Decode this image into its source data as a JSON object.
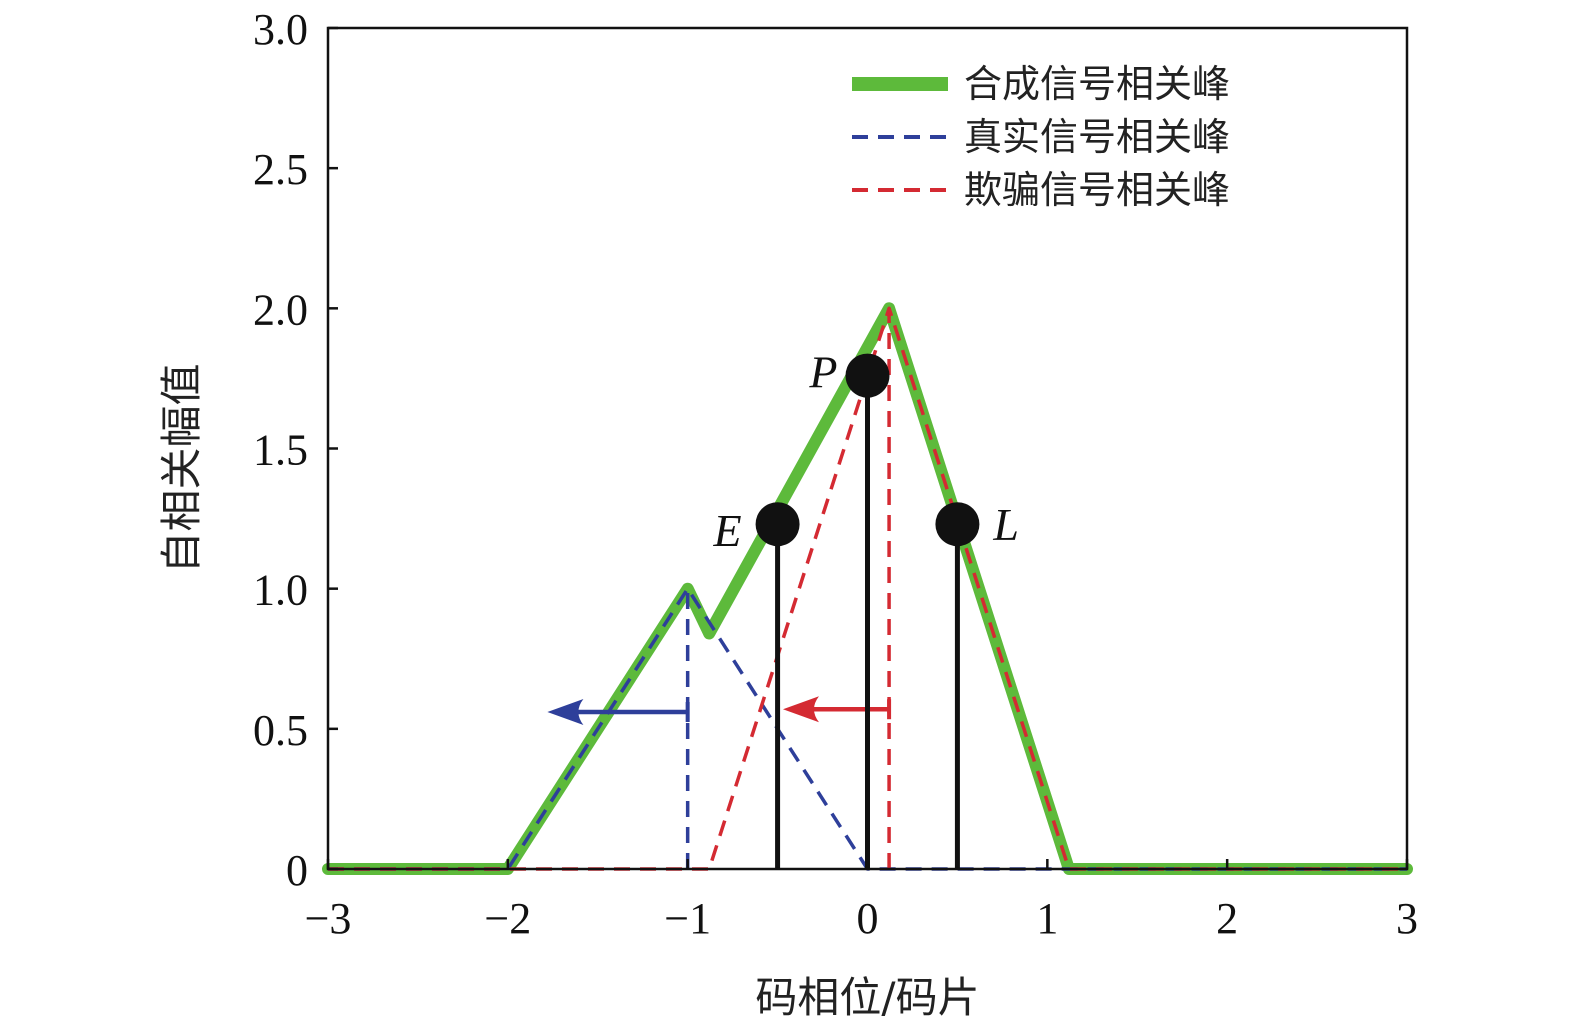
{
  "chart_data": {
    "type": "line",
    "xlabel": "码相位/码片",
    "ylabel": "自相关幅值",
    "xlim": [
      -3,
      3
    ],
    "ylim": [
      0,
      3
    ],
    "x_ticks": [
      -3,
      -2,
      -1,
      0,
      1,
      2,
      3
    ],
    "x_tick_labels": [
      "−3",
      "−2",
      "−1",
      "0",
      "1",
      "2",
      "3"
    ],
    "y_ticks": [
      0,
      0.5,
      1.0,
      1.5,
      2.0,
      2.5,
      3.0
    ],
    "y_tick_labels": [
      "0",
      "0.5",
      "1.0",
      "1.5",
      "2.0",
      "2.5",
      "3.0"
    ],
    "grid": false,
    "legend_position": "top-right",
    "series": [
      {
        "name": "合成信号相关峰",
        "color": "#5dba3b",
        "style": "solid",
        "x": [
          -3,
          -2,
          -1,
          -0.88,
          0.12,
          1.12,
          3
        ],
        "y": [
          0,
          0,
          1.0,
          0.84,
          2.0,
          0,
          0
        ]
      },
      {
        "name": "真实信号相关峰",
        "color": "#2e3f9a",
        "style": "dashed",
        "x": [
          -3,
          -2,
          -1,
          0,
          3
        ],
        "y": [
          0,
          0,
          1.0,
          0,
          0
        ]
      },
      {
        "name": "欺骗信号相关峰",
        "color": "#d42a32",
        "style": "dashed",
        "x": [
          -3,
          -0.88,
          0.12,
          1.12,
          3
        ],
        "y": [
          0,
          0,
          2.0,
          0,
          0
        ]
      }
    ],
    "vertical_markers": [
      {
        "x": -1,
        "y": 1.0,
        "color": "#2e3f9a",
        "style": "dashed"
      },
      {
        "x": 0.12,
        "y": 2.0,
        "color": "#d42a32",
        "style": "dashed"
      }
    ],
    "arrows": [
      {
        "color": "#2e3f9a",
        "y": 0.56,
        "from_x": -1,
        "to_x": -1.78
      },
      {
        "color": "#d42a32",
        "y": 0.57,
        "from_x": 0.12,
        "to_x": -0.47
      }
    ],
    "correlators": [
      {
        "label": "E",
        "x": -0.5,
        "y": 1.23
      },
      {
        "label": "P",
        "x": 0.0,
        "y": 1.76
      },
      {
        "label": "L",
        "x": 0.5,
        "y": 1.23
      }
    ]
  }
}
